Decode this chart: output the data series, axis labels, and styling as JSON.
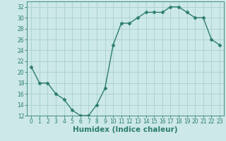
{
  "x": [
    0,
    1,
    2,
    3,
    4,
    5,
    6,
    7,
    8,
    9,
    10,
    11,
    12,
    13,
    14,
    15,
    16,
    17,
    18,
    19,
    20,
    21,
    22,
    23
  ],
  "y": [
    21,
    18,
    18,
    16,
    15,
    13,
    12,
    12,
    14,
    17,
    25,
    29,
    29,
    30,
    31,
    31,
    31,
    32,
    32,
    31,
    30,
    30,
    26,
    25
  ],
  "xlabel": "Humidex (Indice chaleur)",
  "ylim": [
    12,
    33
  ],
  "xlim": [
    -0.5,
    23.5
  ],
  "yticks": [
    12,
    14,
    16,
    18,
    20,
    22,
    24,
    26,
    28,
    30,
    32
  ],
  "xticks": [
    0,
    1,
    2,
    3,
    4,
    5,
    6,
    7,
    8,
    9,
    10,
    11,
    12,
    13,
    14,
    15,
    16,
    17,
    18,
    19,
    20,
    21,
    22,
    23
  ],
  "line_color": "#2d7d6e",
  "marker": "D",
  "marker_size": 2.5,
  "bg_color": "#cce8e8",
  "grid_color": "#aacfcf",
  "tick_label_fontsize": 5.5,
  "xlabel_fontsize": 7.5
}
